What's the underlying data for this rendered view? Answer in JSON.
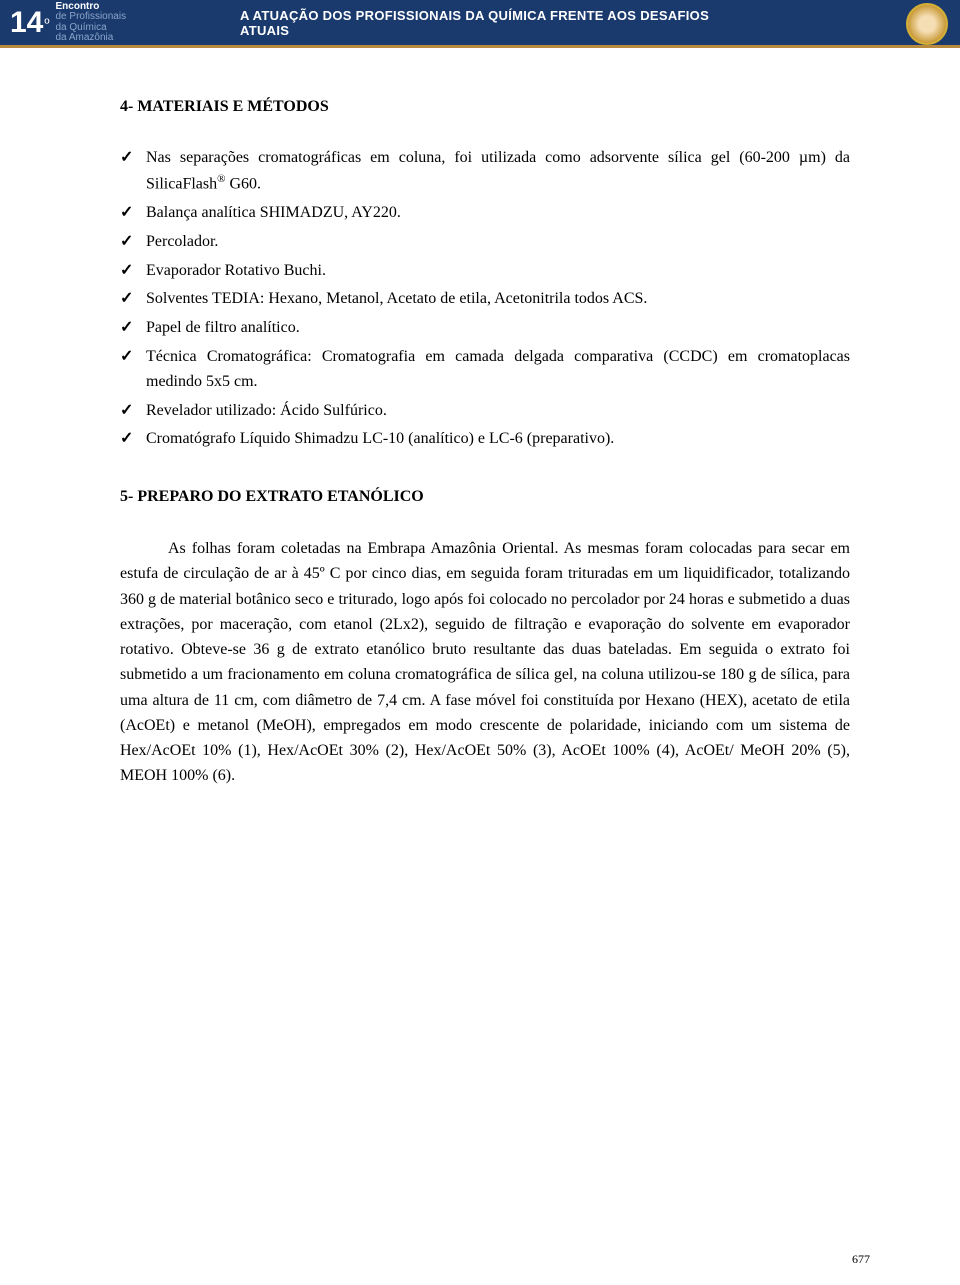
{
  "banner": {
    "number": "14",
    "deg": "º",
    "line1": "Encontro",
    "line2a": "de Profissionais",
    "line2b": "da Química",
    "line2c": "da Amazônia",
    "title": "A ATUAÇÃO DOS PROFISSIONAIS DA QUÍMICA FRENTE AOS DESAFIOS ATUAIS",
    "colors": {
      "bg": "#1a3a6e",
      "accent": "#b88a3e",
      "text_light": "#ffffff",
      "text_muted": "#8aa5c9"
    }
  },
  "section4": {
    "heading": "4-  MATERIAIS E MÉTODOS",
    "items": [
      "Nas separações cromatográficas em coluna, foi utilizada como adsorvente sílica gel (60-200 µm) da SilicaFlash® G60.",
      "Balança analítica SHIMADZU, AY220.",
      "Percolador.",
      "Evaporador Rotativo Buchi.",
      "Solventes TEDIA: Hexano, Metanol, Acetato de etila, Acetonitrila todos ACS.",
      "Papel de filtro analítico.",
      "Técnica Cromatográfica: Cromatografia em camada delgada comparativa (CCDC) em cromatoplacas medindo 5x5 cm.",
      "Revelador utilizado: Ácido Sulfúrico.",
      "Cromatógrafo Líquido Shimadzu LC-10 (analítico) e LC-6 (preparativo)."
    ]
  },
  "section5": {
    "heading": "5-  PREPARO DO EXTRATO ETANÓLICO",
    "paragraph": "As folhas foram coletadas na Embrapa Amazônia Oriental. As mesmas foram colocadas para secar em estufa de circulação de ar à 45º C por cinco dias, em seguida foram trituradas em um liquidificador, totalizando 360 g de material botânico seco e triturado, logo após foi colocado no percolador por 24 horas e submetido a duas extrações, por maceração, com etanol (2Lx2), seguido de filtração e evaporação do solvente em evaporador rotativo. Obteve-se 36 g de extrato etanólico bruto resultante das duas bateladas. Em seguida o extrato foi submetido a um fracionamento em coluna cromatográfica de sílica gel, na coluna utilizou-se 180 g de sílica, para uma altura de 11 cm, com diâmetro de 7,4 cm. A fase móvel foi constituída por Hexano (HEX), acetato de etila (AcOEt) e metanol (MeOH), empregados em modo crescente de polaridade, iniciando com um sistema de Hex/AcOEt 10% (1), Hex/AcOEt 30% (2), Hex/AcOEt 50% (3), AcOEt 100% (4), AcOEt/ MeOH 20% (5), MEOH 100% (6)."
  },
  "page_number": "677",
  "typography": {
    "body_font": "Times New Roman",
    "body_size_pt": 12,
    "heading_weight": "bold",
    "line_height": 1.58
  }
}
